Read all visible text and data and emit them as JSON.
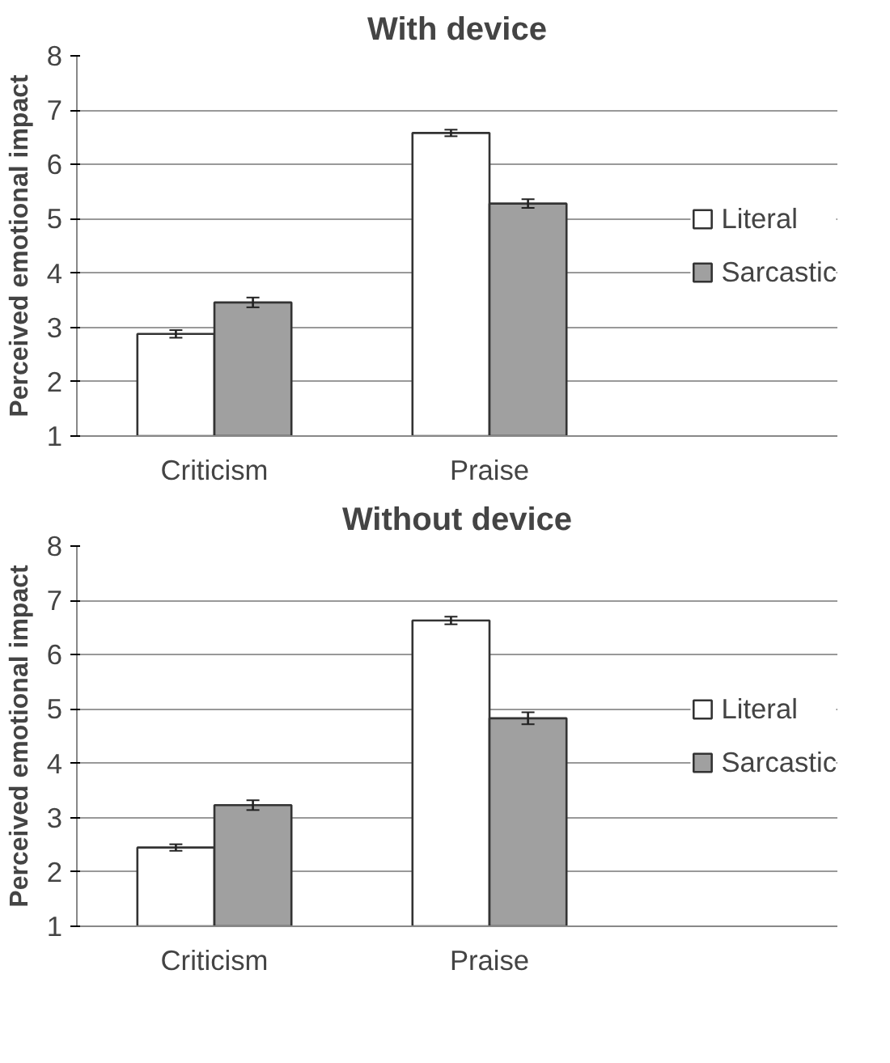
{
  "chart_data": [
    {
      "type": "bar",
      "title": "With device",
      "ylabel": "Perceived emotional impact",
      "categories": [
        "Criticism",
        "Praise"
      ],
      "series": [
        {
          "name": "Literal",
          "color": "#ffffff",
          "values": [
            2.88,
            6.58
          ],
          "errors": [
            0.07,
            0.06
          ]
        },
        {
          "name": "Sarcastic",
          "color": "#a0a0a0",
          "values": [
            3.46,
            5.28
          ],
          "errors": [
            0.09,
            0.08
          ]
        }
      ],
      "ylim": [
        1,
        8
      ],
      "yticks": [
        1,
        2,
        3,
        4,
        5,
        6,
        7,
        8
      ],
      "grid": "y",
      "legend": "right"
    },
    {
      "type": "bar",
      "title": "Without device",
      "ylabel": "Perceived emotional impact",
      "categories": [
        "Criticism",
        "Praise"
      ],
      "series": [
        {
          "name": "Literal",
          "color": "#ffffff",
          "values": [
            2.45,
            6.63
          ],
          "errors": [
            0.06,
            0.07
          ]
        },
        {
          "name": "Sarcastic",
          "color": "#a0a0a0",
          "values": [
            3.23,
            4.83
          ],
          "errors": [
            0.09,
            0.11
          ]
        }
      ],
      "ylim": [
        1,
        8
      ],
      "yticks": [
        1,
        2,
        3,
        4,
        5,
        6,
        7,
        8
      ],
      "grid": "y",
      "legend": "right"
    }
  ]
}
